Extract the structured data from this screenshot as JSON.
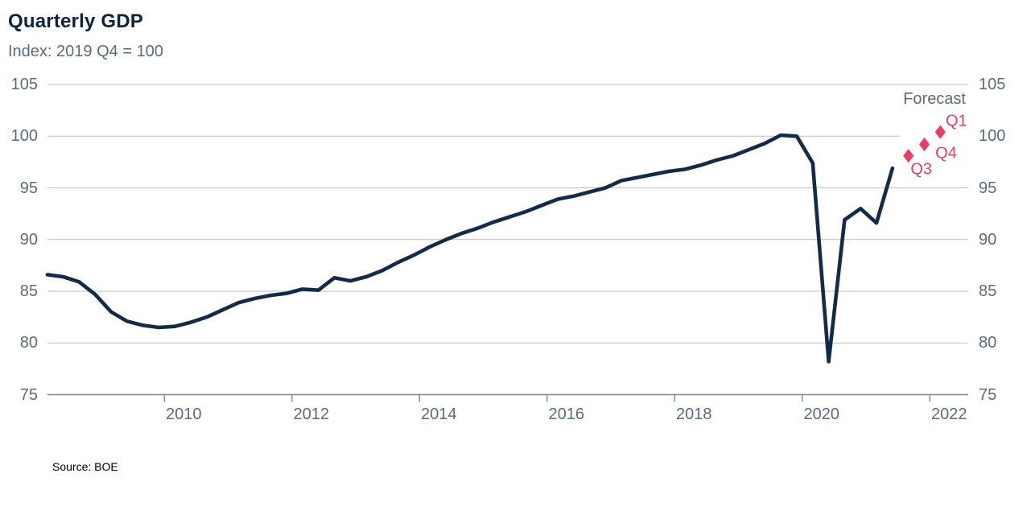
{
  "header": {
    "title": "Quarterly GDP",
    "subtitle": "Index: 2019 Q4 = 100"
  },
  "footer": {
    "source": "Source: BOE"
  },
  "colors": {
    "line": "#142b47",
    "forecast": "#e63e64",
    "title": "#0c2340",
    "muted": "#5a6b7a",
    "grid": "#b9bfc5",
    "axis": "#7d8893"
  },
  "chart_data": {
    "type": "line",
    "title": "Quarterly GDP",
    "subtitle": "Index: 2019 Q4 = 100",
    "xlabel": "",
    "ylabel": "Index: 2019 Q4 = 100",
    "ylim": [
      75,
      105
    ],
    "grid": "horizontal",
    "legend_position": "none",
    "y_axis": {
      "ticks": [
        105,
        100,
        95,
        90,
        85,
        80,
        75
      ],
      "shown_both_sides": true
    },
    "x_axis": {
      "ticks": [
        2010,
        2012,
        2014,
        2016,
        2018,
        2020,
        2022
      ]
    },
    "annotations": [
      {
        "name": "forecast",
        "text": "Forecast"
      }
    ],
    "series": [
      {
        "name": "Quarterly GDP outturn",
        "style": "line",
        "x_start": 2008.0,
        "x_step": 0.25,
        "values": [
          86.6,
          86.4,
          85.9,
          84.7,
          83.0,
          82.1,
          81.7,
          81.5,
          81.6,
          82.0,
          82.5,
          83.2,
          83.9,
          84.3,
          84.6,
          84.8,
          85.2,
          85.1,
          86.3,
          86.0,
          86.4,
          87.0,
          87.8,
          88.5,
          89.3,
          90.0,
          90.6,
          91.1,
          91.7,
          92.2,
          92.7,
          93.3,
          93.9,
          94.2,
          94.6,
          95.0,
          95.7,
          96.0,
          96.3,
          96.6,
          96.8,
          97.2,
          97.7,
          98.1,
          98.7,
          99.3,
          100.1,
          100.0,
          97.4,
          78.2,
          91.9,
          93.0,
          91.6,
          96.9
        ]
      },
      {
        "name": "Forecast",
        "style": "diamond-markers",
        "points": [
          {
            "label": "Q3",
            "x": 2021.5,
            "value": 98.1
          },
          {
            "label": "Q4",
            "x": 2021.75,
            "value": 99.2
          },
          {
            "label": "Q1",
            "x": 2022.0,
            "value": 100.4
          }
        ]
      }
    ]
  }
}
